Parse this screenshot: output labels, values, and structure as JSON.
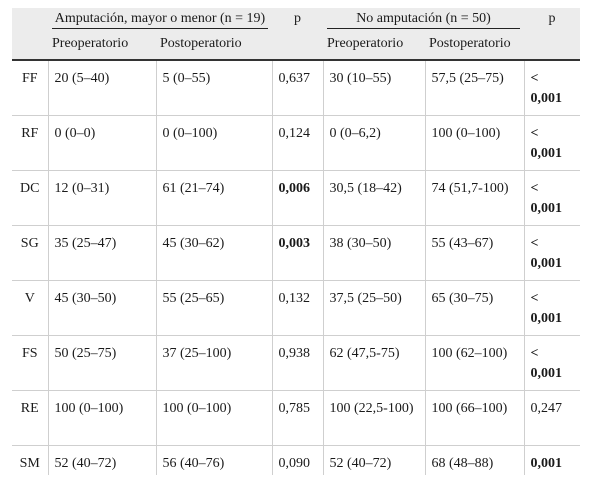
{
  "header": {
    "group1_title": "Amputación, mayor o menor (n = 19)",
    "group2_title": "No amputación (n = 50)",
    "p_label": "p",
    "pre_label": "Preoperatorio",
    "post_label": "Postoperatorio"
  },
  "rows": [
    {
      "label": "FF",
      "g1_pre": "20 (5–40)",
      "g1_post": "5 (0–55)",
      "p1": "0,637",
      "g2_pre": "30 (10–55)",
      "g2_post": "57,5 (25–75)",
      "p2_a": "<",
      "p2_b": "0,001"
    },
    {
      "label": "RF",
      "g1_pre": "0 (0–0)",
      "g1_post": "0 (0–100)",
      "p1": "0,124",
      "g2_pre": "0 (0–6,2)",
      "g2_post": "100 (0–100)",
      "p2_a": "<",
      "p2_b": "0,001"
    },
    {
      "label": "DC",
      "g1_pre": "12 (0–31)",
      "g1_post": "61 (21–74)",
      "p1": "0,006",
      "g2_pre": "30,5 (18–42)",
      "g2_post": "74 (51,7-100)",
      "p2_a": "<",
      "p2_b": "0,001"
    },
    {
      "label": "SG",
      "g1_pre": "35 (25–47)",
      "g1_post": "45 (30–62)",
      "p1": "0,003",
      "g2_pre": "38 (30–50)",
      "g2_post": "55 (43–67)",
      "p2_a": "<",
      "p2_b": "0,001"
    },
    {
      "label": "V",
      "g1_pre": "45 (30–50)",
      "g1_post": "55 (25–65)",
      "p1": "0,132",
      "g2_pre": "37,5 (25–50)",
      "g2_post": "65 (30–75)",
      "p2_a": "<",
      "p2_b": "0,001"
    },
    {
      "label": "FS",
      "g1_pre": "50 (25–75)",
      "g1_post": "37 (25–100)",
      "p1": "0,938",
      "g2_pre": "62 (47,5-75)",
      "g2_post": "100 (62–100)",
      "p2_a": "<",
      "p2_b": "0,001"
    },
    {
      "label": "RE",
      "g1_pre": "100 (0–100)",
      "g1_post": "100 (0–100)",
      "p1": "0,785",
      "g2_pre": "100 (22,5-100)",
      "g2_post": "100 (66–100)",
      "p2": "0,247"
    },
    {
      "label": "SM",
      "g1_pre": "52 (40–72)",
      "g1_post": "56 (40–76)",
      "p1": "0,090",
      "g2_pre": "52 (40–72)",
      "g2_post": "68 (48–88)",
      "p2": "0,001"
    }
  ]
}
